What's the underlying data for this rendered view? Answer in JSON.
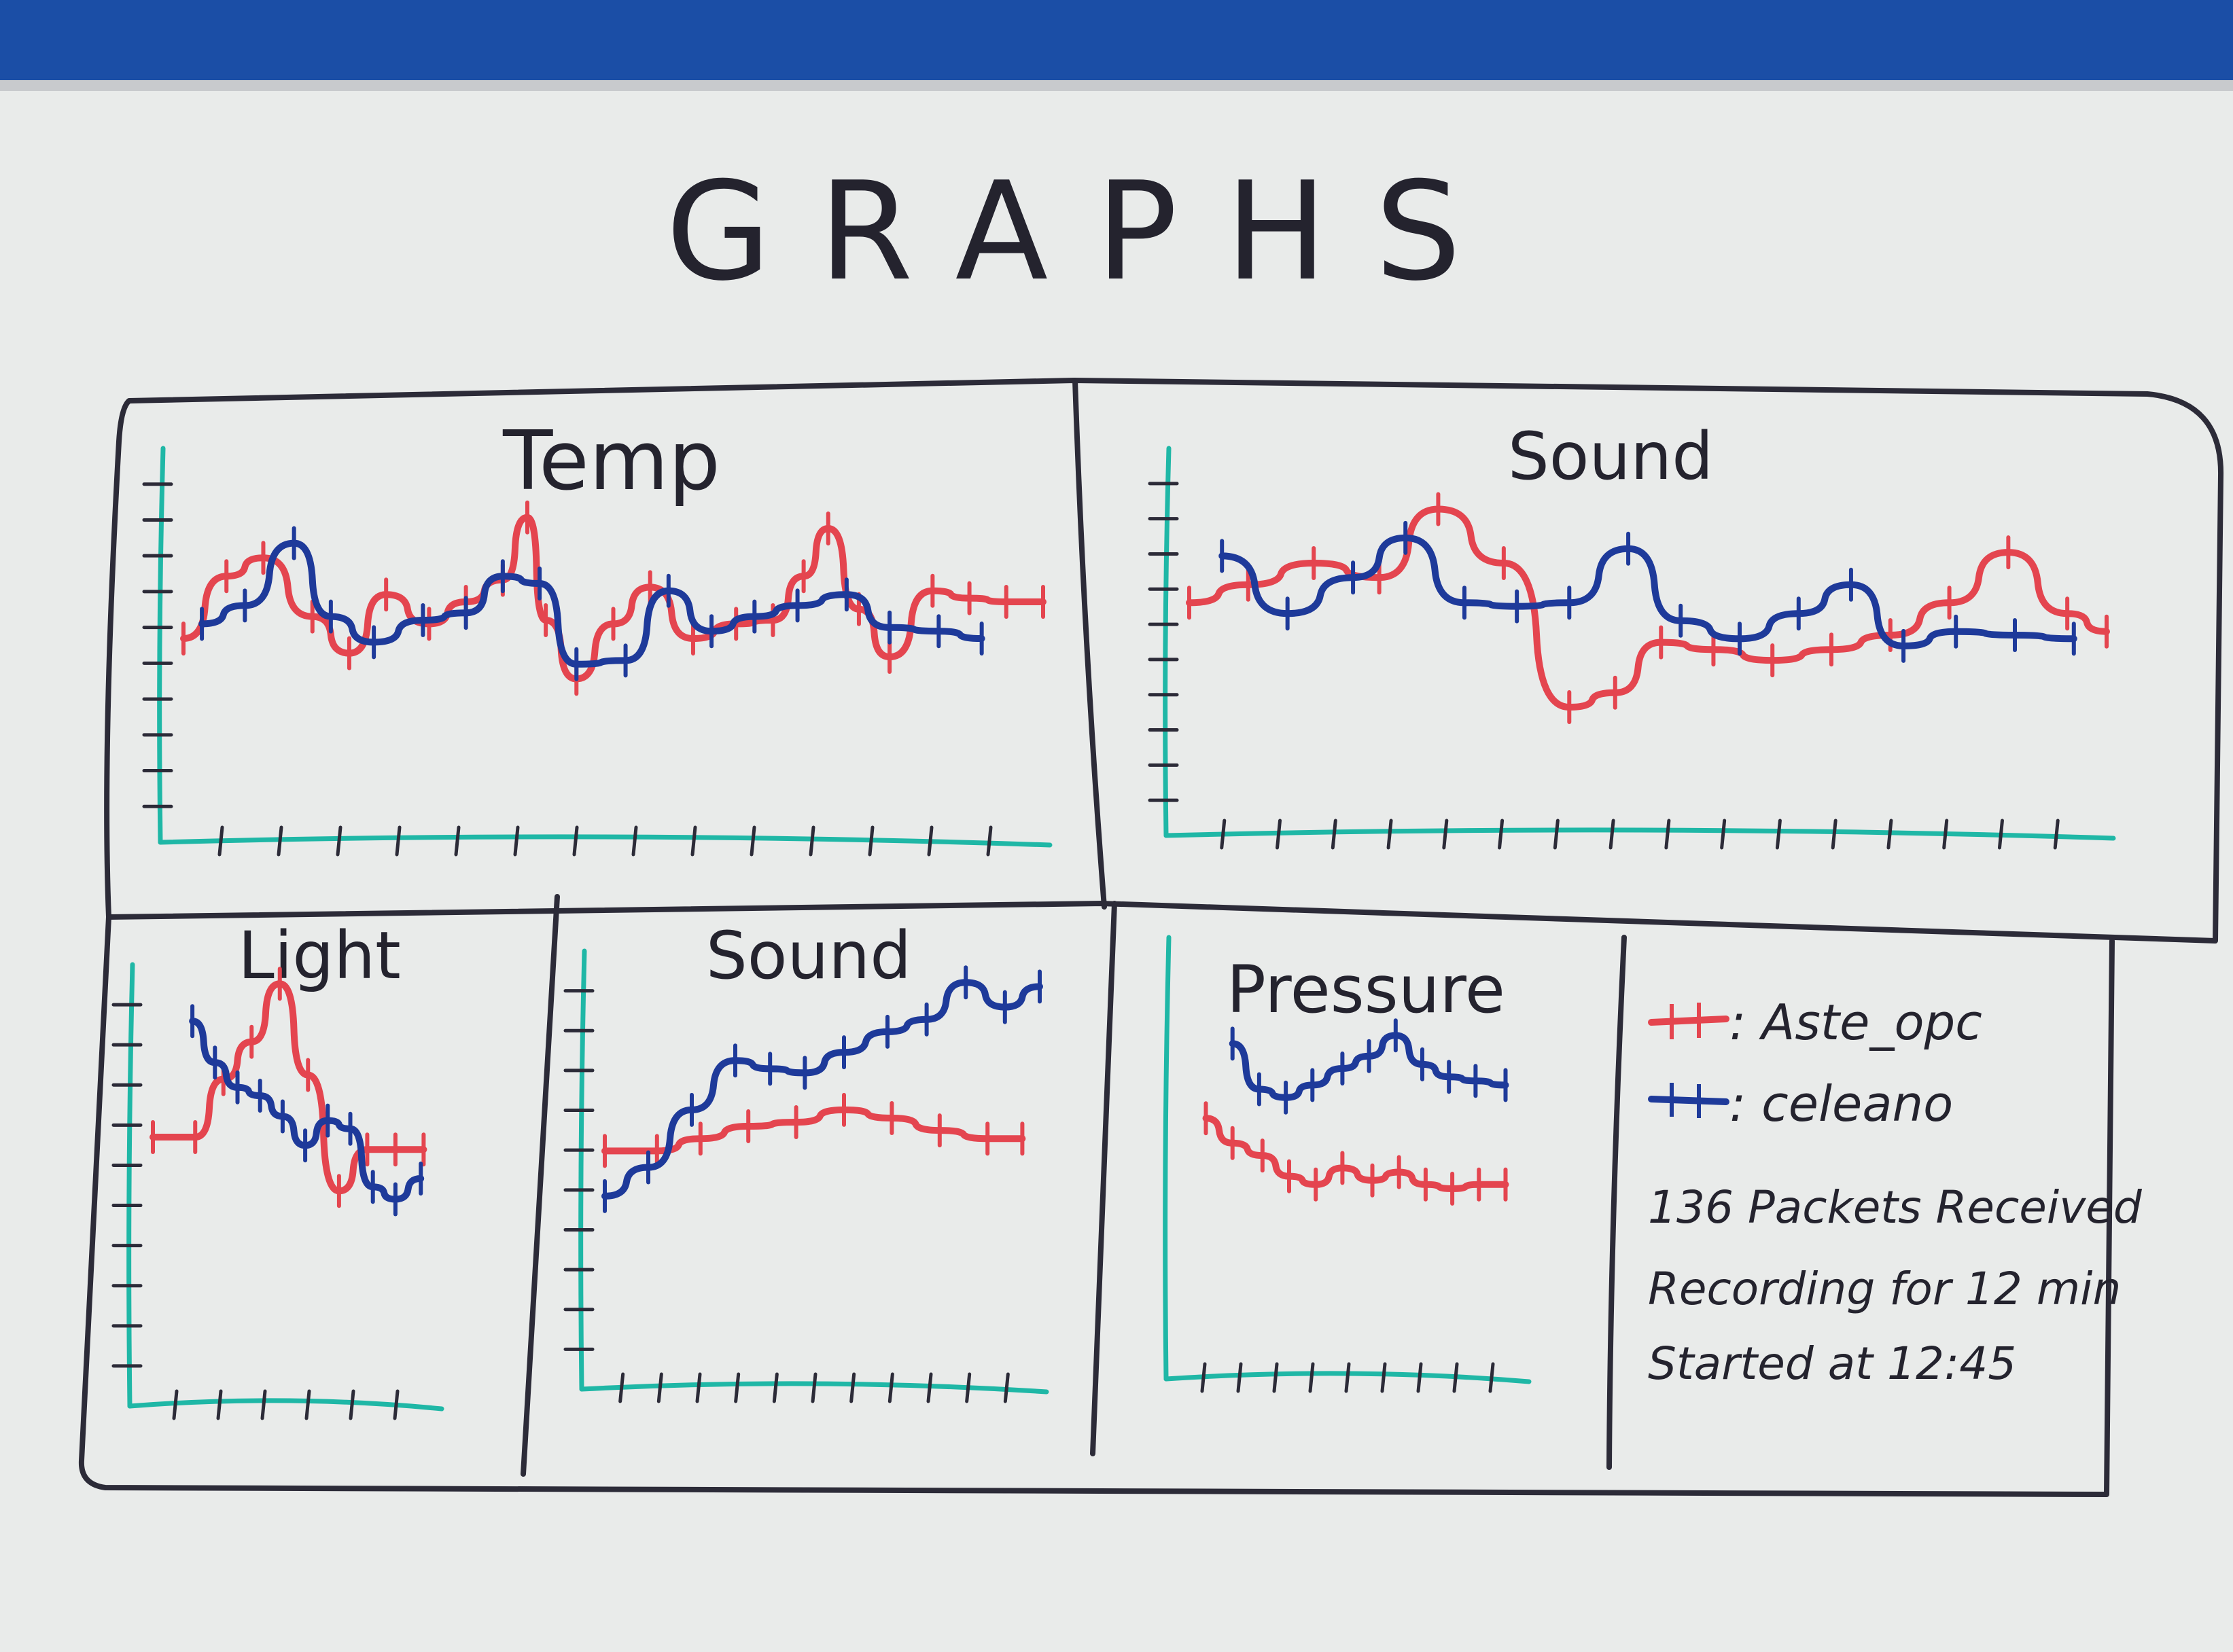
{
  "title": "GRAPHS",
  "colors": {
    "frame": "#2c2b38",
    "axis": "#1fb7a6",
    "red_series": "#e4454f",
    "blue_series": "#1e3a9a",
    "border_top": "#1b4ea6"
  },
  "legend": {
    "items": [
      {
        "symbol": "red-tick-line",
        "color": "#e4454f",
        "label": ": Aste_opc"
      },
      {
        "symbol": "blue-tick-line",
        "color": "#1e3a9a",
        "label": ": celeano"
      }
    ]
  },
  "info": {
    "packets": "136 Packets Received",
    "recording": "Recording for 12 min",
    "started": "Started at 12:45"
  },
  "chart_data": [
    {
      "id": "temp",
      "type": "line",
      "title": "Temp",
      "xlim": [
        0,
        14
      ],
      "ylim": [
        0,
        10
      ],
      "series": [
        {
          "color": "red",
          "x": [
            0,
            0.7,
            1.3,
            2.1,
            2.7,
            3.3,
            4.0,
            4.6,
            5.2,
            5.6,
            5.9,
            6.4,
            7.0,
            7.6,
            8.3,
            9.0,
            9.6,
            10.1,
            10.5,
            11.0,
            11.5,
            12.2,
            12.8,
            13.4,
            14.0
          ],
          "y": [
            5.0,
            6.7,
            7.2,
            5.6,
            4.6,
            6.2,
            5.4,
            6.0,
            6.6,
            8.3,
            5.5,
            3.9,
            5.4,
            6.4,
            5.0,
            5.4,
            5.5,
            6.7,
            8.0,
            5.8,
            4.5,
            6.3,
            6.1,
            6.0,
            6.0
          ]
        },
        {
          "color": "blue",
          "x": [
            0.3,
            1.0,
            1.8,
            2.4,
            3.1,
            3.9,
            4.6,
            5.2,
            5.8,
            6.4,
            7.2,
            7.9,
            8.6,
            9.3,
            10.0,
            10.8,
            11.5,
            12.3,
            13.0
          ],
          "y": [
            5.4,
            5.9,
            7.6,
            5.6,
            4.9,
            5.5,
            5.7,
            6.7,
            6.5,
            4.3,
            4.4,
            6.3,
            5.2,
            5.6,
            5.9,
            6.2,
            5.3,
            5.2,
            5.0
          ]
        }
      ]
    },
    {
      "id": "sound_top",
      "type": "line",
      "title": "Sound",
      "xlim": [
        0,
        14
      ],
      "ylim": [
        0,
        10
      ],
      "series": [
        {
          "color": "red",
          "x": [
            0,
            0.9,
            1.9,
            2.9,
            3.8,
            4.8,
            5.8,
            6.5,
            7.2,
            8.0,
            8.9,
            9.8,
            10.7,
            11.6,
            12.5,
            13.4,
            14.0
          ],
          "y": [
            5.9,
            6.4,
            7.0,
            6.6,
            8.5,
            7.0,
            3.0,
            3.4,
            4.8,
            4.6,
            4.3,
            4.6,
            5.0,
            5.9,
            7.3,
            5.6,
            5.1
          ]
        },
        {
          "color": "blue",
          "x": [
            0.5,
            1.5,
            2.5,
            3.3,
            4.2,
            5.0,
            5.8,
            6.7,
            7.5,
            8.4,
            9.3,
            10.1,
            10.9,
            11.7,
            12.6,
            13.5
          ],
          "y": [
            7.2,
            5.6,
            6.6,
            7.7,
            5.9,
            5.8,
            5.9,
            7.4,
            5.4,
            4.9,
            5.6,
            6.4,
            4.7,
            5.1,
            5.0,
            4.9
          ]
        }
      ]
    },
    {
      "id": "light",
      "type": "line",
      "title": "Light",
      "xlim": [
        0,
        10
      ],
      "ylim": [
        0,
        10
      ],
      "series": [
        {
          "color": "red",
          "x": [
            0,
            1.5,
            2.5,
            3.5,
            4.5,
            5.5,
            6.6,
            7.6,
            8.6,
            9.6
          ],
          "y": [
            6.0,
            6.0,
            7.4,
            8.3,
            9.7,
            7.5,
            4.7,
            5.7,
            5.7,
            5.7
          ]
        },
        {
          "color": "blue",
          "x": [
            1.4,
            2.2,
            3.0,
            3.8,
            4.6,
            5.4,
            6.2,
            7.0,
            7.8,
            8.6,
            9.5
          ],
          "y": [
            8.8,
            7.8,
            7.2,
            7.0,
            6.5,
            5.8,
            6.4,
            6.2,
            4.8,
            4.5,
            5.0
          ]
        }
      ]
    },
    {
      "id": "sound_bottom",
      "type": "line",
      "title": "Sound",
      "xlim": [
        0,
        10
      ],
      "ylim": [
        0,
        10
      ],
      "series": [
        {
          "color": "red",
          "x": [
            0,
            1.2,
            2.2,
            3.3,
            4.4,
            5.5,
            6.6,
            7.7,
            8.8,
            9.6
          ],
          "y": [
            5.3,
            5.3,
            5.6,
            5.9,
            6.0,
            6.3,
            6.1,
            5.8,
            5.6,
            5.6
          ]
        },
        {
          "color": "blue",
          "x": [
            0,
            1.0,
            2.0,
            3.0,
            3.8,
            4.6,
            5.5,
            6.5,
            7.4,
            8.3,
            9.2,
            10.0
          ],
          "y": [
            4.2,
            4.9,
            6.3,
            7.5,
            7.3,
            7.2,
            7.7,
            8.2,
            8.5,
            9.4,
            8.8,
            9.3
          ]
        }
      ]
    },
    {
      "id": "pressure",
      "type": "line",
      "title": "Pressure",
      "xlim": [
        0,
        10
      ],
      "ylim": [
        0,
        10
      ],
      "series": [
        {
          "color": "red",
          "x": [
            0.5,
            1.3,
            2.2,
            3.0,
            3.8,
            4.6,
            5.5,
            6.3,
            7.1,
            7.9,
            8.7,
            9.5
          ],
          "y": [
            5.8,
            5.2,
            4.9,
            4.4,
            4.2,
            4.6,
            4.3,
            4.5,
            4.2,
            4.1,
            4.2,
            4.2
          ]
        },
        {
          "color": "blue",
          "x": [
            1.3,
            2.1,
            2.9,
            3.7,
            4.6,
            5.4,
            6.2,
            7.0,
            7.8,
            8.6,
            9.5
          ],
          "y": [
            7.6,
            6.5,
            6.3,
            6.6,
            7.0,
            7.3,
            7.8,
            7.1,
            6.8,
            6.7,
            6.6
          ]
        }
      ]
    }
  ]
}
